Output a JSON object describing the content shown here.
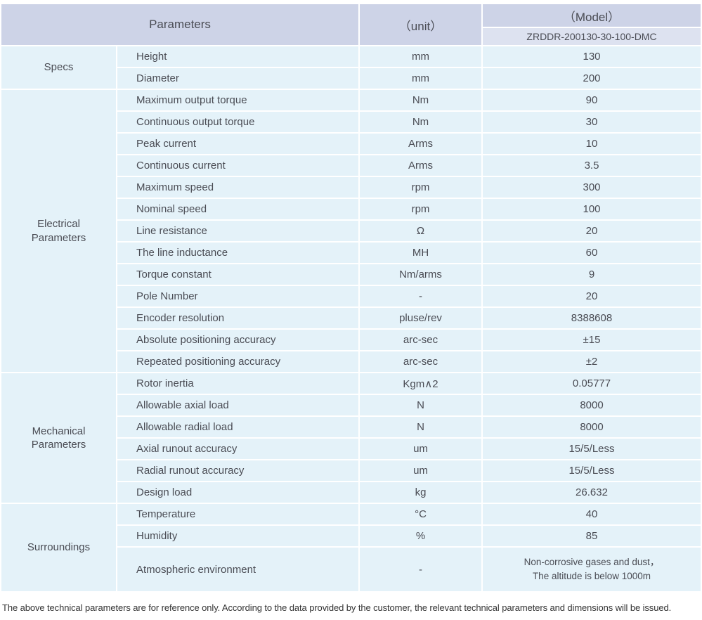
{
  "header": {
    "parameters_label": "Parameters",
    "unit_label": "（unit）",
    "model_label": "（Model）",
    "model_value": "ZRDDR-200130-30-100-DMC"
  },
  "groups": [
    {
      "name": "Specs",
      "rows": [
        {
          "param": "Height",
          "unit": "mm",
          "value": "130"
        },
        {
          "param": "Diameter",
          "unit": "mm",
          "value": "200"
        }
      ]
    },
    {
      "name": "Electrical\nParameters",
      "rows": [
        {
          "param": "Maximum output torque",
          "unit": "Nm",
          "value": "90"
        },
        {
          "param": "Continuous output torque",
          "unit": "Nm",
          "value": "30"
        },
        {
          "param": "Peak current",
          "unit": "Arms",
          "value": "10"
        },
        {
          "param": "Continuous current",
          "unit": "Arms",
          "value": "3.5"
        },
        {
          "param": "Maximum speed",
          "unit": "rpm",
          "value": "300"
        },
        {
          "param": "Nominal speed",
          "unit": "rpm",
          "value": "100"
        },
        {
          "param": "Line resistance",
          "unit": "Ω",
          "value": "20"
        },
        {
          "param": "The line inductance",
          "unit": "MH",
          "value": "60"
        },
        {
          "param": "Torque constant",
          "unit": "Nm/arms",
          "value": "9"
        },
        {
          "param": "Pole Number",
          "unit": "-",
          "value": "20"
        },
        {
          "param": "Encoder resolution",
          "unit": "pluse/rev",
          "value": "8388608"
        },
        {
          "param": "Absolute positioning accuracy",
          "unit": "arc-sec",
          "value": "±15"
        },
        {
          "param": "Repeated positioning accuracy",
          "unit": "arc-sec",
          "value": "±2"
        }
      ]
    },
    {
      "name": "Mechanical\nParameters",
      "rows": [
        {
          "param": "Rotor inertia",
          "unit": "Kgm∧2",
          "value": "0.05777"
        },
        {
          "param": "Allowable axial load",
          "unit": "N",
          "value": "8000"
        },
        {
          "param": "Allowable radial load",
          "unit": "N",
          "value": "8000"
        },
        {
          "param": "Axial runout accuracy",
          "unit": "um",
          "value": "15/5/Less"
        },
        {
          "param": "Radial runout accuracy",
          "unit": "um",
          "value": "15/5/Less"
        },
        {
          "param": "Design load",
          "unit": "kg",
          "value": "26.632"
        }
      ]
    },
    {
      "name": "Surroundings",
      "rows": [
        {
          "param": "Temperature",
          "unit": "°C",
          "value": "40"
        },
        {
          "param": "Humidity",
          "unit": "%",
          "value": "85"
        },
        {
          "param": "Atmospheric environment",
          "unit": "-",
          "value": "Non-corrosive gases and dust，\nThe altitude is below 1000m",
          "tall": true
        }
      ]
    }
  ],
  "footer_note": "The above technical parameters are for reference only. According to the data provided by the customer, the relevant technical parameters and dimensions will be issued.",
  "colors": {
    "header_bg": "#cdd3e7",
    "model_value_bg": "#dde2f0",
    "row_bg": "#e4f2f9",
    "text": "#4a4c54"
  }
}
